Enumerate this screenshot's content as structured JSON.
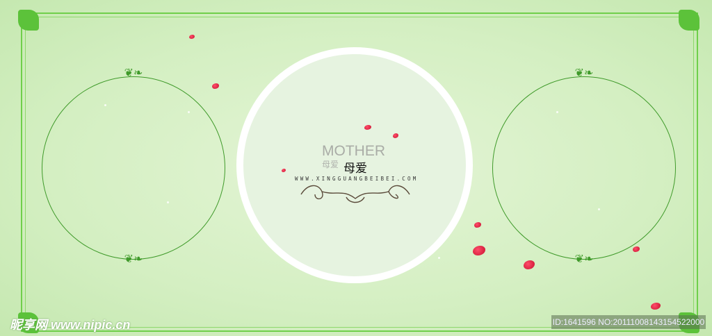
{
  "center": {
    "title_en": "MOTHER",
    "title_cn_small": "母爱",
    "title_cn": "母爱",
    "url": "WWW.XINGGUANGBEIBEI.COM"
  },
  "watermark": {
    "site": "昵享网 www.nipic.cn",
    "id_text": "ID:1641596 NO:20111008143154522000"
  },
  "colors": {
    "border": "#6fcf4a",
    "ring": "#3f9a2a",
    "petal": "#d9173a",
    "background": "#d4efc2"
  },
  "icons": {
    "ornament": "floral-flourish-icon",
    "petal": "rose-petal-icon"
  }
}
